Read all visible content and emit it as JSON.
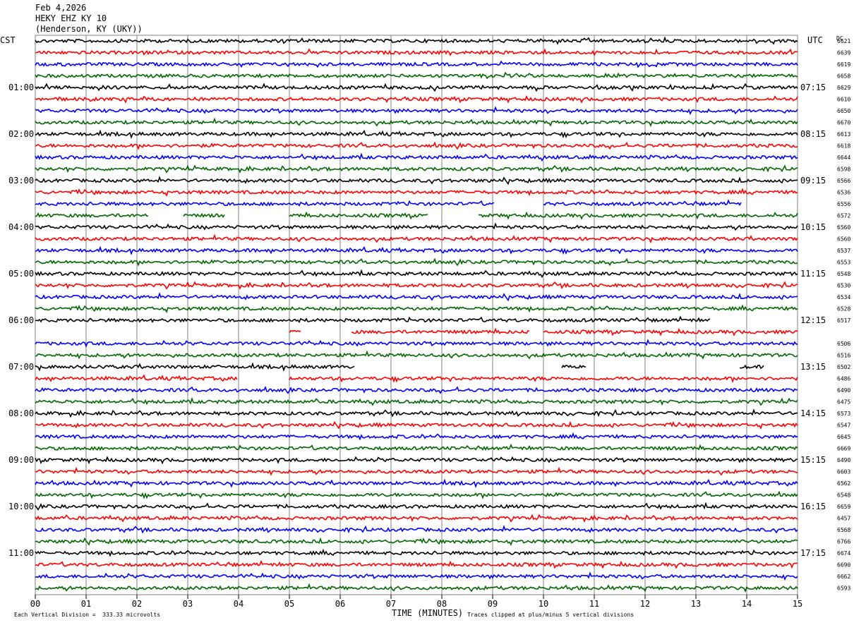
{
  "header": {
    "date": "Feb 4,2026",
    "station": "HEKY EHZ KY 10",
    "location": "(Henderson, KY (UKY))"
  },
  "labels": {
    "left_zone": "CST",
    "right_zone": "UTC",
    "dc": "DC"
  },
  "footer": {
    "scale": "Each Vertical Division =  333.33 microvolts",
    "clip_note": "Traces clipped at plus/minus 5 vertical divisions"
  },
  "colors": {
    "trace_cycle": [
      "#000000",
      "#ff0000",
      "#0000ff",
      "#006600"
    ],
    "grid": "#808080"
  },
  "chart_data": {
    "type": "line",
    "title": "",
    "xlabel": "TIME (MINUTES)",
    "ylabel": "",
    "xlim": [
      0,
      15
    ],
    "x_ticks": [
      "00",
      "01",
      "02",
      "03",
      "04",
      "05",
      "06",
      "07",
      "08",
      "09",
      "10",
      "11",
      "12",
      "13",
      "14",
      "15"
    ],
    "left_hour_labels": [
      "01:00",
      "02:00",
      "03:00",
      "04:00",
      "05:00",
      "06:00",
      "07:00",
      "08:00",
      "09:00",
      "10:00",
      "11:00"
    ],
    "right_hour_labels": [
      "07:15",
      "08:15",
      "09:15",
      "10:15",
      "11:15",
      "12:15",
      "13:15",
      "14:15",
      "15:15",
      "16:15",
      "17:15"
    ],
    "traces_per_hour": 4,
    "trace_count": 48,
    "dc_offsets": [
      "6621",
      "6639",
      "6619",
      "6658",
      "6629",
      "6610",
      "6650",
      "6670",
      "6613",
      "6618",
      "6644",
      "6598",
      "6566",
      "6536",
      "6556",
      "6572",
      "6560",
      "6560",
      "6537",
      "6553",
      "6548",
      "6530",
      "6534",
      "6528",
      "6517",
      "",
      "6506",
      "6516",
      "6502",
      "6486",
      "6490",
      "6475",
      "6573",
      "6547",
      "6645",
      "6669",
      "6490",
      "6603",
      "6562",
      "6548",
      "6659",
      "6457",
      "6568",
      "6766",
      "6674",
      "6690",
      "6662",
      "6593"
    ],
    "gaps": [
      {
        "trace": 15,
        "ranges": [
          [
            2.25,
            2.9
          ],
          [
            3.75,
            5.0
          ],
          [
            7.75,
            8.7
          ]
        ]
      },
      {
        "trace": 14,
        "ranges": [
          [
            9.05,
            10.0
          ],
          [
            13.9,
            15.0
          ]
        ]
      },
      {
        "trace": 25,
        "ranges": [
          [
            0.0,
            5.0
          ],
          [
            5.25,
            6.2
          ],
          [
            9.75,
            10.0
          ]
        ]
      },
      {
        "trace": 24,
        "ranges": [
          [
            13.3,
            15.0
          ]
        ]
      },
      {
        "trace": 28,
        "ranges": [
          [
            6.3,
            10.35
          ],
          [
            10.85,
            13.85
          ],
          [
            14.35,
            15.0
          ]
        ]
      },
      {
        "trace": 29,
        "ranges": [
          [
            4.0,
            5.0
          ]
        ]
      }
    ]
  }
}
